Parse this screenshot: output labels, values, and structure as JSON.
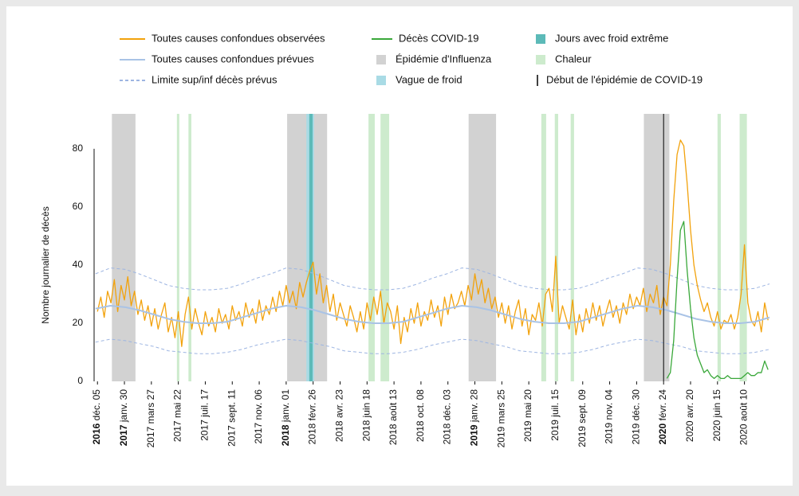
{
  "chart_data": {
    "type": "line",
    "y_label": "Nombre journalier de décès",
    "xlim": [
      "2016-11-28",
      "2020-10-01"
    ],
    "ylim": [
      0,
      92
    ],
    "yticks": [
      0,
      20,
      40,
      60,
      80
    ],
    "grid": false,
    "legend": "top",
    "xticks": [
      {
        "value": "2016-12-05",
        "year": "2016",
        "label": "déc. 05"
      },
      {
        "value": "2017-01-30",
        "year": "2017",
        "label": "janv. 30"
      },
      {
        "value": "2017-03-27",
        "year": "2017",
        "label": "mars 27"
      },
      {
        "value": "2017-05-22",
        "year": "2017",
        "label": "mai 22"
      },
      {
        "value": "2017-07-17",
        "year": "2017",
        "label": "juil. 17"
      },
      {
        "value": "2017-09-11",
        "year": "2017",
        "label": "sept. 11"
      },
      {
        "value": "2017-11-06",
        "year": "2017",
        "label": "nov. 06"
      },
      {
        "value": "2018-01-01",
        "year": "2018",
        "label": "janv. 01"
      },
      {
        "value": "2018-02-26",
        "year": "2018",
        "label": "févr. 26"
      },
      {
        "value": "2018-04-23",
        "year": "2018",
        "label": "avr. 23"
      },
      {
        "value": "2018-06-18",
        "year": "2018",
        "label": "juin 18"
      },
      {
        "value": "2018-08-13",
        "year": "2018",
        "label": "août 13"
      },
      {
        "value": "2018-10-08",
        "year": "2018",
        "label": "oct. 08"
      },
      {
        "value": "2018-12-03",
        "year": "2018",
        "label": "déc. 03"
      },
      {
        "value": "2019-01-28",
        "year": "2019",
        "label": "janv. 28"
      },
      {
        "value": "2019-03-25",
        "year": "2019",
        "label": "mars 25"
      },
      {
        "value": "2019-05-20",
        "year": "2019",
        "label": "mai 20"
      },
      {
        "value": "2019-07-15",
        "year": "2019",
        "label": "juil. 15"
      },
      {
        "value": "2019-09-09",
        "year": "2019",
        "label": "sept. 09"
      },
      {
        "value": "2019-11-04",
        "year": "2019",
        "label": "nov. 04"
      },
      {
        "value": "2019-12-30",
        "year": "2019",
        "label": "déc. 30"
      },
      {
        "value": "2020-02-24",
        "year": "2020",
        "label": "févr. 24"
      },
      {
        "value": "2020-04-20",
        "year": "2020",
        "label": "avr. 20"
      },
      {
        "value": "2020-06-15",
        "year": "2020",
        "label": "juin 15"
      },
      {
        "value": "2020-08-10",
        "year": "2020",
        "label": "août 10"
      }
    ],
    "series": [
      {
        "name": "Toutes causes confondues observées",
        "color": "#f2a20c",
        "x": [
          "2016-12-05",
          "2016-12-12",
          "2016-12-19",
          "2016-12-26",
          "2017-01-02",
          "2017-01-09",
          "2017-01-16",
          "2017-01-23",
          "2017-01-30",
          "2017-02-06",
          "2017-02-13",
          "2017-02-20",
          "2017-02-27",
          "2017-03-06",
          "2017-03-13",
          "2017-03-20",
          "2017-03-27",
          "2017-04-03",
          "2017-04-10",
          "2017-04-17",
          "2017-04-24",
          "2017-05-01",
          "2017-05-08",
          "2017-05-15",
          "2017-05-22",
          "2017-05-29",
          "2017-06-05",
          "2017-06-12",
          "2017-06-19",
          "2017-06-26",
          "2017-07-03",
          "2017-07-10",
          "2017-07-17",
          "2017-07-24",
          "2017-07-31",
          "2017-08-07",
          "2017-08-14",
          "2017-08-21",
          "2017-08-28",
          "2017-09-04",
          "2017-09-11",
          "2017-09-18",
          "2017-09-25",
          "2017-10-02",
          "2017-10-09",
          "2017-10-16",
          "2017-10-23",
          "2017-10-30",
          "2017-11-06",
          "2017-11-13",
          "2017-11-20",
          "2017-11-27",
          "2017-12-04",
          "2017-12-11",
          "2017-12-18",
          "2017-12-25",
          "2018-01-01",
          "2018-01-08",
          "2018-01-15",
          "2018-01-22",
          "2018-01-29",
          "2018-02-05",
          "2018-02-12",
          "2018-02-19",
          "2018-02-26",
          "2018-03-05",
          "2018-03-12",
          "2018-03-19",
          "2018-03-26",
          "2018-04-02",
          "2018-04-09",
          "2018-04-16",
          "2018-04-23",
          "2018-04-30",
          "2018-05-07",
          "2018-05-14",
          "2018-05-21",
          "2018-05-28",
          "2018-06-04",
          "2018-06-11",
          "2018-06-18",
          "2018-06-25",
          "2018-07-02",
          "2018-07-09",
          "2018-07-16",
          "2018-07-23",
          "2018-07-30",
          "2018-08-06",
          "2018-08-13",
          "2018-08-20",
          "2018-08-27",
          "2018-09-03",
          "2018-09-10",
          "2018-09-17",
          "2018-09-24",
          "2018-10-01",
          "2018-10-08",
          "2018-10-15",
          "2018-10-22",
          "2018-10-29",
          "2018-11-05",
          "2018-11-12",
          "2018-11-19",
          "2018-11-26",
          "2018-12-03",
          "2018-12-10",
          "2018-12-17",
          "2018-12-24",
          "2018-12-31",
          "2019-01-07",
          "2019-01-14",
          "2019-01-21",
          "2019-01-28",
          "2019-02-04",
          "2019-02-11",
          "2019-02-18",
          "2019-02-25",
          "2019-03-04",
          "2019-03-11",
          "2019-03-18",
          "2019-03-25",
          "2019-04-01",
          "2019-04-08",
          "2019-04-15",
          "2019-04-22",
          "2019-04-29",
          "2019-05-06",
          "2019-05-13",
          "2019-05-20",
          "2019-05-27",
          "2019-06-03",
          "2019-06-10",
          "2019-06-17",
          "2019-06-24",
          "2019-07-01",
          "2019-07-08",
          "2019-07-15",
          "2019-07-22",
          "2019-07-29",
          "2019-08-05",
          "2019-08-12",
          "2019-08-19",
          "2019-08-26",
          "2019-09-02",
          "2019-09-09",
          "2019-09-16",
          "2019-09-23",
          "2019-09-30",
          "2019-10-07",
          "2019-10-14",
          "2019-10-21",
          "2019-10-28",
          "2019-11-04",
          "2019-11-11",
          "2019-11-18",
          "2019-11-25",
          "2019-12-02",
          "2019-12-09",
          "2019-12-16",
          "2019-12-23",
          "2019-12-30",
          "2020-01-06",
          "2020-01-13",
          "2020-01-20",
          "2020-01-27",
          "2020-02-03",
          "2020-02-10",
          "2020-02-17",
          "2020-02-24",
          "2020-03-02",
          "2020-03-09",
          "2020-03-16",
          "2020-03-23",
          "2020-03-30",
          "2020-04-06",
          "2020-04-13",
          "2020-04-20",
          "2020-04-27",
          "2020-05-04",
          "2020-05-11",
          "2020-05-18",
          "2020-05-25",
          "2020-06-01",
          "2020-06-08",
          "2020-06-15",
          "2020-06-22",
          "2020-06-29",
          "2020-07-06",
          "2020-07-13",
          "2020-07-20",
          "2020-07-27",
          "2020-08-03",
          "2020-08-10",
          "2020-08-17",
          "2020-08-24",
          "2020-08-31",
          "2020-09-07",
          "2020-09-14",
          "2020-09-21",
          "2020-09-28"
        ],
        "values": [
          24,
          29,
          22,
          31,
          27,
          35,
          24,
          33,
          28,
          36,
          26,
          31,
          23,
          28,
          21,
          26,
          19,
          25,
          18,
          23,
          27,
          17,
          22,
          15,
          24,
          12,
          23,
          29,
          18,
          25,
          20,
          16,
          24,
          19,
          22,
          17,
          25,
          20,
          23,
          18,
          26,
          21,
          24,
          19,
          27,
          22,
          25,
          20,
          28,
          21,
          26,
          23,
          29,
          24,
          31,
          26,
          33,
          27,
          31,
          25,
          34,
          29,
          34,
          38,
          41,
          30,
          37,
          27,
          33,
          24,
          30,
          21,
          27,
          23,
          19,
          26,
          22,
          17,
          24,
          18,
          27,
          21,
          29,
          23,
          31,
          20,
          27,
          24,
          18,
          26,
          13,
          22,
          17,
          25,
          20,
          27,
          19,
          24,
          21,
          28,
          22,
          26,
          19,
          29,
          23,
          30,
          25,
          27,
          31,
          26,
          33,
          28,
          37,
          30,
          35,
          27,
          32,
          25,
          29,
          22,
          27,
          20,
          26,
          18,
          24,
          28,
          19,
          25,
          16,
          23,
          21,
          27,
          19,
          30,
          32,
          24,
          43,
          20,
          26,
          22,
          18,
          28,
          16,
          23,
          17,
          25,
          20,
          27,
          21,
          26,
          19,
          24,
          28,
          22,
          26,
          20,
          27,
          23,
          30,
          25,
          29,
          26,
          32,
          24,
          30,
          27,
          33,
          23,
          29,
          26,
          40,
          62,
          78,
          83,
          81,
          68,
          52,
          40,
          33,
          28,
          24,
          27,
          22,
          19,
          24,
          18,
          21,
          20,
          23,
          18,
          22,
          30,
          47,
          27,
          21,
          19,
          24,
          17,
          27,
          21
        ]
      },
      {
        "name": "Toutes causes confondues prévues",
        "color": "#a9c3e6",
        "x": [
          "2016-12-01",
          "2017-01-01",
          "2017-02-01",
          "2017-03-01",
          "2017-04-01",
          "2017-05-01",
          "2017-06-01",
          "2017-07-01",
          "2017-08-01",
          "2017-09-01",
          "2017-10-01",
          "2017-11-01",
          "2017-12-01",
          "2018-01-01",
          "2018-02-01",
          "2018-03-01",
          "2018-04-01",
          "2018-05-01",
          "2018-06-01",
          "2018-07-01",
          "2018-08-01",
          "2018-09-01",
          "2018-10-01",
          "2018-11-01",
          "2018-12-01",
          "2019-01-01",
          "2019-02-01",
          "2019-03-01",
          "2019-04-01",
          "2019-05-01",
          "2019-06-01",
          "2019-07-01",
          "2019-08-01",
          "2019-09-01",
          "2019-10-01",
          "2019-11-01",
          "2019-12-01",
          "2020-01-01",
          "2020-02-01",
          "2020-03-01",
          "2020-04-01",
          "2020-05-01",
          "2020-06-01",
          "2020-07-01",
          "2020-08-01",
          "2020-09-01",
          "2020-10-01"
        ],
        "values": [
          25,
          26,
          25.5,
          24.5,
          23,
          21.5,
          20.5,
          20,
          20,
          20.5,
          22,
          23.5,
          25,
          26,
          25.5,
          24.5,
          23,
          21.5,
          20.5,
          20,
          20,
          20.5,
          22,
          23.5,
          25,
          26,
          25.5,
          24.5,
          23,
          21.5,
          20.5,
          20,
          20,
          20.5,
          22,
          23.5,
          25,
          26,
          25.5,
          24.5,
          23,
          21.5,
          20.5,
          20,
          20,
          20.5,
          22
        ]
      },
      {
        "name": "Limite sup/inf décès prévus",
        "color": "#9db5e2",
        "dashed": true,
        "x": [
          "2016-12-01",
          "2017-01-01",
          "2017-02-01",
          "2017-03-01",
          "2017-04-01",
          "2017-05-01",
          "2017-06-01",
          "2017-07-01",
          "2017-08-01",
          "2017-09-01",
          "2017-10-01",
          "2017-11-01",
          "2017-12-01",
          "2018-01-01",
          "2018-02-01",
          "2018-03-01",
          "2018-04-01",
          "2018-05-01",
          "2018-06-01",
          "2018-07-01",
          "2018-08-01",
          "2018-09-01",
          "2018-10-01",
          "2018-11-01",
          "2018-12-01",
          "2019-01-01",
          "2019-02-01",
          "2019-03-01",
          "2019-04-01",
          "2019-05-01",
          "2019-06-01",
          "2019-07-01",
          "2019-08-01",
          "2019-09-01",
          "2019-10-01",
          "2019-11-01",
          "2019-12-01",
          "2020-01-01",
          "2020-02-01",
          "2020-03-01",
          "2020-04-01",
          "2020-05-01",
          "2020-06-01",
          "2020-07-01",
          "2020-08-01",
          "2020-09-01",
          "2020-10-01"
        ],
        "upper": [
          37,
          39,
          38.5,
          37,
          35,
          33,
          32,
          31.5,
          31.5,
          32,
          33.5,
          35.5,
          37,
          39,
          38.5,
          37,
          35,
          33,
          32,
          31.5,
          31.5,
          32,
          33.5,
          35.5,
          37,
          39,
          38.5,
          37,
          35,
          33,
          32,
          31.5,
          31.5,
          32,
          33.5,
          35.5,
          37,
          39,
          38.5,
          37,
          35,
          33,
          32,
          31.5,
          31.5,
          32,
          33.5
        ],
        "lower": [
          13.5,
          14.5,
          14,
          13,
          12,
          10.5,
          10,
          9.5,
          9.5,
          10,
          11,
          12.5,
          13.5,
          14.5,
          14,
          13,
          12,
          10.5,
          10,
          9.5,
          9.5,
          10,
          11,
          12.5,
          13.5,
          14.5,
          14,
          13,
          12,
          10.5,
          10,
          9.5,
          9.5,
          10,
          11,
          12.5,
          13.5,
          14.5,
          14,
          13,
          12,
          10.5,
          10,
          9.5,
          9.5,
          10,
          11
        ]
      },
      {
        "name": "Décès COVID-19",
        "color": "#3aa83a",
        "x": [
          "2020-03-02",
          "2020-03-09",
          "2020-03-16",
          "2020-03-23",
          "2020-03-30",
          "2020-04-06",
          "2020-04-13",
          "2020-04-20",
          "2020-04-27",
          "2020-05-04",
          "2020-05-11",
          "2020-05-18",
          "2020-05-25",
          "2020-06-01",
          "2020-06-08",
          "2020-06-15",
          "2020-06-22",
          "2020-06-29",
          "2020-07-06",
          "2020-07-13",
          "2020-07-20",
          "2020-07-27",
          "2020-08-03",
          "2020-08-10",
          "2020-08-17",
          "2020-08-24",
          "2020-08-31",
          "2020-09-07",
          "2020-09-14",
          "2020-09-21",
          "2020-09-28"
        ],
        "values": [
          1,
          3,
          14,
          35,
          52,
          55,
          38,
          25,
          15,
          9,
          6,
          3,
          4,
          2,
          1,
          2,
          1,
          1,
          2,
          1,
          1,
          1,
          1,
          2,
          3,
          2,
          2,
          3,
          3,
          7,
          4
        ]
      }
    ],
    "bands": [
      {
        "name": "Épidémie d'Influenza",
        "color": "#d2d2d2",
        "periods": [
          [
            "2017-01-04",
            "2017-02-22"
          ],
          [
            "2018-01-03",
            "2018-03-27"
          ],
          [
            "2019-01-15",
            "2019-03-13"
          ],
          [
            "2020-01-14",
            "2020-03-07"
          ]
        ]
      },
      {
        "name": "Vague de froid",
        "color": "#a9dbe5",
        "periods": [
          [
            "2018-02-12",
            "2018-02-28"
          ]
        ]
      },
      {
        "name": "Jours avec froid extrême",
        "color": "#5cbab8",
        "periods": [
          [
            "2018-02-18",
            "2018-02-25"
          ]
        ]
      },
      {
        "name": "Chaleur",
        "color": "#cdebcd",
        "periods": [
          [
            "2017-05-19",
            "2017-05-24"
          ],
          [
            "2017-06-12",
            "2017-06-18"
          ],
          [
            "2018-06-21",
            "2018-07-04"
          ],
          [
            "2018-07-16",
            "2018-08-03"
          ],
          [
            "2019-06-15",
            "2019-06-25"
          ],
          [
            "2019-07-13",
            "2019-07-20"
          ],
          [
            "2019-08-15",
            "2019-08-22"
          ],
          [
            "2020-06-15",
            "2020-06-22"
          ],
          [
            "2020-07-31",
            "2020-08-15"
          ]
        ]
      }
    ],
    "event": {
      "name": "Début de l'épidémie de COVID-19",
      "color": "#000000",
      "date": "2020-02-24"
    }
  }
}
